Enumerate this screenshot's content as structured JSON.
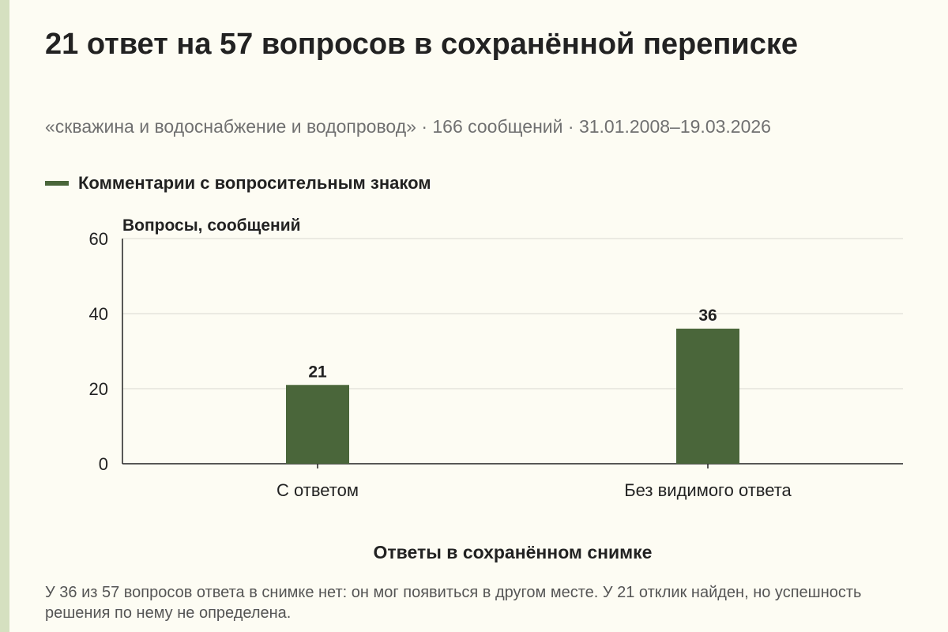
{
  "title": "21 ответ на 57 вопросов в сохранённой переписке",
  "subtitle": "«скважина и водоснабжение и водопровод» · 166 сообщений · 31.01.2008–19.03.2026",
  "footnote": "У 36 из 57 вопросов ответа в снимке нет: он мог появиться в другом месте. У 21 отклик найден, но успешность решения по нему не определена.",
  "colors": {
    "bar": "#4a663a",
    "grid": "#d9d9d0",
    "axis": "#222222",
    "background": "#fdfcf3",
    "stripe": "#d5e0c0"
  },
  "chart_data": {
    "type": "bar",
    "categories": [
      "С ответом",
      "Без видимого ответа"
    ],
    "series": [
      {
        "name": "Комментарии с вопросительным знаком",
        "values": [
          21,
          36
        ]
      }
    ],
    "data_labels": [
      "21",
      "36"
    ],
    "ylabel": "Вопросы, сообщений",
    "xlabel": "Ответы в сохранённом снимке",
    "ylim": [
      0,
      60
    ],
    "yticks": [
      0,
      20,
      40,
      60
    ],
    "grid": true,
    "legend_position": "top-left"
  }
}
